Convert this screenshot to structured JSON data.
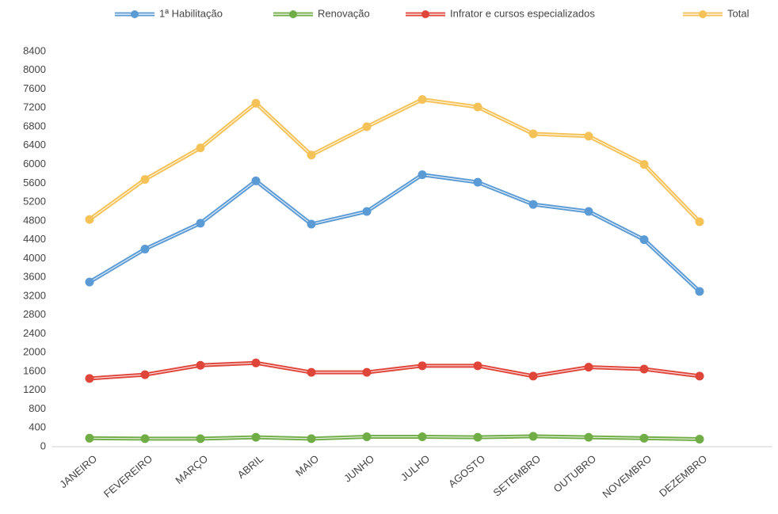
{
  "chart_data": {
    "type": "line",
    "categories": [
      "JANEIRO",
      "FEVEREIRO",
      "MARÇO",
      "ABRIL",
      "MAIO",
      "JUNHO",
      "JULHO",
      "AGOSTO",
      "SETEMBRO",
      "OUTUBRO",
      "NOVEMBRO",
      "DEZEMBRO"
    ],
    "series": [
      {
        "name": "1ª Habilitação",
        "color": "#5b9bd5",
        "values": [
          3500,
          4200,
          4750,
          5650,
          4730,
          5000,
          5780,
          5620,
          5150,
          5000,
          4400,
          3300
        ]
      },
      {
        "name": "Renovação",
        "color": "#70ad47",
        "values": [
          180,
          170,
          170,
          200,
          170,
          210,
          210,
          200,
          220,
          200,
          180,
          160
        ]
      },
      {
        "name": "Infrator e cursos especializados",
        "color": "#e0453a",
        "values": [
          1450,
          1530,
          1730,
          1780,
          1580,
          1580,
          1720,
          1720,
          1500,
          1690,
          1650,
          1500
        ]
      },
      {
        "name": "Total",
        "color": "#f5c258",
        "values": [
          4830,
          5680,
          6350,
          7300,
          6200,
          6800,
          7380,
          7220,
          6650,
          6600,
          6000,
          4780
        ]
      }
    ],
    "ylim": [
      0,
      8400
    ],
    "yticks": [
      0,
      400,
      800,
      1200,
      1600,
      2000,
      2400,
      2800,
      3200,
      3600,
      4000,
      4400,
      4800,
      5200,
      5600,
      6000,
      6400,
      6800,
      7200,
      7600,
      8000,
      8400
    ],
    "grid": false,
    "legend": "top"
  }
}
